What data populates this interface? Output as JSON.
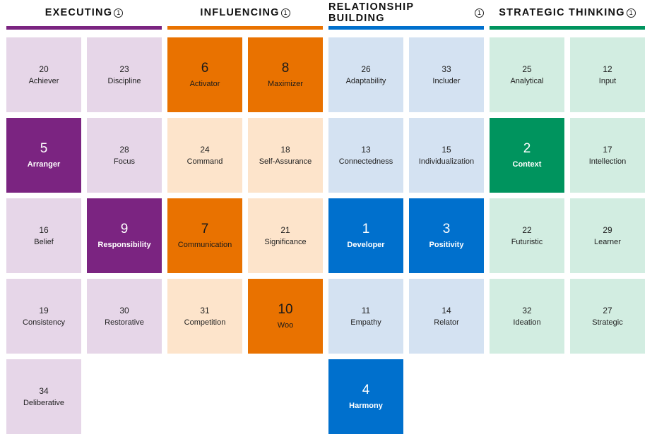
{
  "info_glyph": "①",
  "domains": [
    {
      "key": "executing",
      "title": "EXECUTING",
      "color": "#7b2481",
      "light": "#e6d6e8",
      "strengths": [
        {
          "rank": "20",
          "name": "Achiever",
          "top": false
        },
        {
          "rank": "23",
          "name": "Discipline",
          "top": false
        },
        {
          "rank": "5",
          "name": "Arranger",
          "top": true
        },
        {
          "rank": "28",
          "name": "Focus",
          "top": false
        },
        {
          "rank": "16",
          "name": "Belief",
          "top": false
        },
        {
          "rank": "9",
          "name": "Responsibility",
          "top": true
        },
        {
          "rank": "19",
          "name": "Consistency",
          "top": false
        },
        {
          "rank": "30",
          "name": "Restorative",
          "top": false
        },
        {
          "rank": "34",
          "name": "Deliberative",
          "top": false
        }
      ]
    },
    {
      "key": "influencing",
      "title": "INFLUENCING",
      "color": "#e97200",
      "light": "#fde4cb",
      "strengths": [
        {
          "rank": "6",
          "name": "Activator",
          "top": true
        },
        {
          "rank": "8",
          "name": "Maximizer",
          "top": true
        },
        {
          "rank": "24",
          "name": "Command",
          "top": false
        },
        {
          "rank": "18",
          "name": "Self-Assurance",
          "top": false
        },
        {
          "rank": "7",
          "name": "Communication",
          "top": true
        },
        {
          "rank": "21",
          "name": "Significance",
          "top": false
        },
        {
          "rank": "31",
          "name": "Competition",
          "top": false
        },
        {
          "rank": "10",
          "name": "Woo",
          "top": true
        }
      ]
    },
    {
      "key": "relationship",
      "title": "RELATIONSHIP BUILDING",
      "color": "#0070cd",
      "light": "#d4e2f2",
      "strengths": [
        {
          "rank": "26",
          "name": "Adaptability",
          "top": false
        },
        {
          "rank": "33",
          "name": "Includer",
          "top": false
        },
        {
          "rank": "13",
          "name": "Connectedness",
          "top": false
        },
        {
          "rank": "15",
          "name": "Individualization",
          "top": false
        },
        {
          "rank": "1",
          "name": "Developer",
          "top": true
        },
        {
          "rank": "3",
          "name": "Positivity",
          "top": true
        },
        {
          "rank": "11",
          "name": "Empathy",
          "top": false
        },
        {
          "rank": "14",
          "name": "Relator",
          "top": false
        },
        {
          "rank": "4",
          "name": "Harmony",
          "top": true
        }
      ]
    },
    {
      "key": "strategic",
      "title": "STRATEGIC THINKING",
      "color": "#00945e",
      "light": "#d2ede1",
      "strengths": [
        {
          "rank": "25",
          "name": "Analytical",
          "top": false
        },
        {
          "rank": "12",
          "name": "Input",
          "top": false
        },
        {
          "rank": "2",
          "name": "Context",
          "top": true
        },
        {
          "rank": "17",
          "name": "Intellection",
          "top": false
        },
        {
          "rank": "22",
          "name": "Futuristic",
          "top": false
        },
        {
          "rank": "29",
          "name": "Learner",
          "top": false
        },
        {
          "rank": "32",
          "name": "Ideation",
          "top": false
        },
        {
          "rank": "27",
          "name": "Strategic",
          "top": false
        }
      ]
    }
  ]
}
